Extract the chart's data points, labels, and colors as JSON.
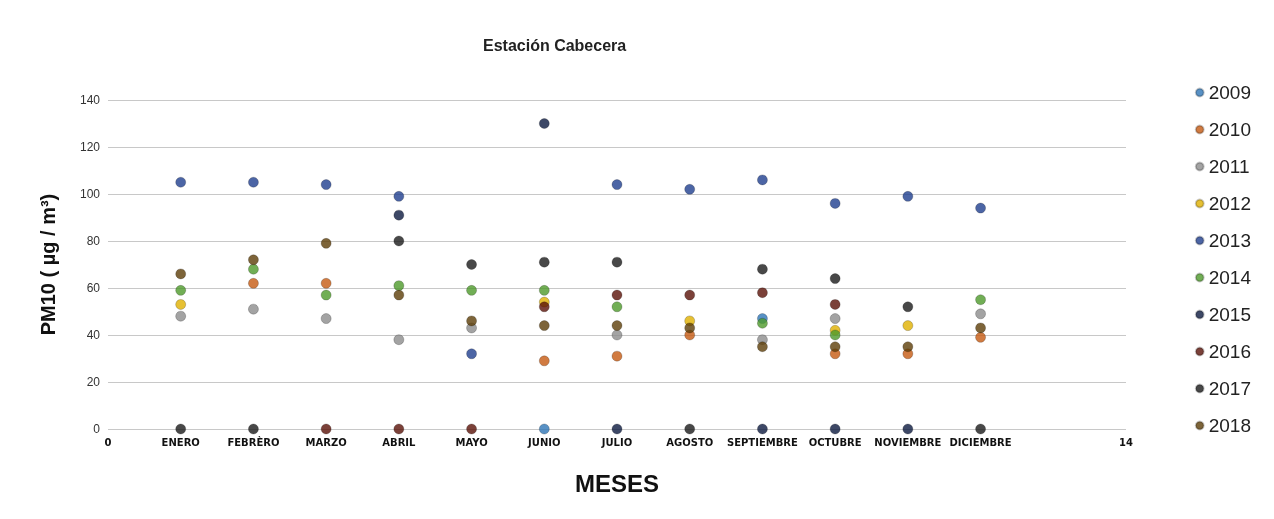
{
  "chart_data": {
    "type": "scatter",
    "title": "Estación Cabecera",
    "xlabel": "MESES",
    "ylabel": "PM10 ( µg / m³)",
    "x": [
      1,
      2,
      3,
      4,
      5,
      6,
      7,
      8,
      9,
      10,
      11,
      12
    ],
    "xlim": [
      0,
      14
    ],
    "xticks": [
      0,
      {
        "value": 1,
        "label": "ENERO"
      },
      {
        "value": 2,
        "label": "FEBRÈRO"
      },
      {
        "value": 3,
        "label": "MARZO"
      },
      {
        "value": 4,
        "label": "ABRIL"
      },
      {
        "value": 5,
        "label": "MAYO"
      },
      {
        "value": 6,
        "label": "JUNIO"
      },
      {
        "value": 7,
        "label": "JULIO"
      },
      {
        "value": 8,
        "label": "AGOSTO"
      },
      {
        "value": 9,
        "label": "SEPTIEMBRE"
      },
      {
        "value": 10,
        "label": "OCTUBRE"
      },
      {
        "value": 11,
        "label": "NOVIEMBRE"
      },
      {
        "value": 12,
        "label": "DICIEMBRE"
      },
      14
    ],
    "ylim": [
      0,
      140
    ],
    "yticks": [
      0,
      20,
      40,
      60,
      80,
      100,
      120,
      140
    ],
    "grid": "y",
    "legend": "right",
    "marker": "circle",
    "series": [
      {
        "name": "2009",
        "color": "#2e75b6",
        "values": [
          null,
          null,
          null,
          null,
          null,
          0,
          null,
          null,
          47,
          null,
          null,
          null
        ]
      },
      {
        "name": "2010",
        "color": "#c55a11",
        "values": [
          null,
          62,
          62,
          null,
          null,
          29,
          31,
          40,
          null,
          32,
          32,
          39
        ]
      },
      {
        "name": "2011",
        "color": "#8c8c8c",
        "values": [
          48,
          51,
          47,
          38,
          43,
          null,
          40,
          null,
          38,
          47,
          null,
          49
        ]
      },
      {
        "name": "2012",
        "color": "#e0b000",
        "values": [
          53,
          null,
          null,
          null,
          null,
          54,
          null,
          46,
          null,
          42,
          44,
          null
        ]
      },
      {
        "name": "2013",
        "color": "#1f3f8f",
        "values": [
          105,
          105,
          104,
          99,
          32,
          null,
          104,
          102,
          106,
          96,
          99,
          94
        ]
      },
      {
        "name": "2014",
        "color": "#4e9a2a",
        "values": [
          59,
          68,
          57,
          61,
          59,
          59,
          52,
          null,
          45,
          40,
          null,
          55
        ]
      },
      {
        "name": "2015",
        "color": "#0d1a40",
        "values": [
          null,
          null,
          null,
          91,
          null,
          130,
          0,
          null,
          0,
          0,
          0,
          null
        ]
      },
      {
        "name": "2016",
        "color": "#5a1208",
        "values": [
          null,
          null,
          0,
          0,
          0,
          52,
          57,
          57,
          58,
          53,
          null,
          null
        ]
      },
      {
        "name": "2017",
        "color": "#1a1a1a",
        "values": [
          0,
          0,
          null,
          80,
          70,
          71,
          71,
          0,
          68,
          64,
          52,
          0
        ]
      },
      {
        "name": "2018",
        "color": "#5c3d08",
        "values": [
          66,
          72,
          79,
          57,
          46,
          44,
          44,
          43,
          35,
          35,
          35,
          43
        ]
      }
    ]
  }
}
